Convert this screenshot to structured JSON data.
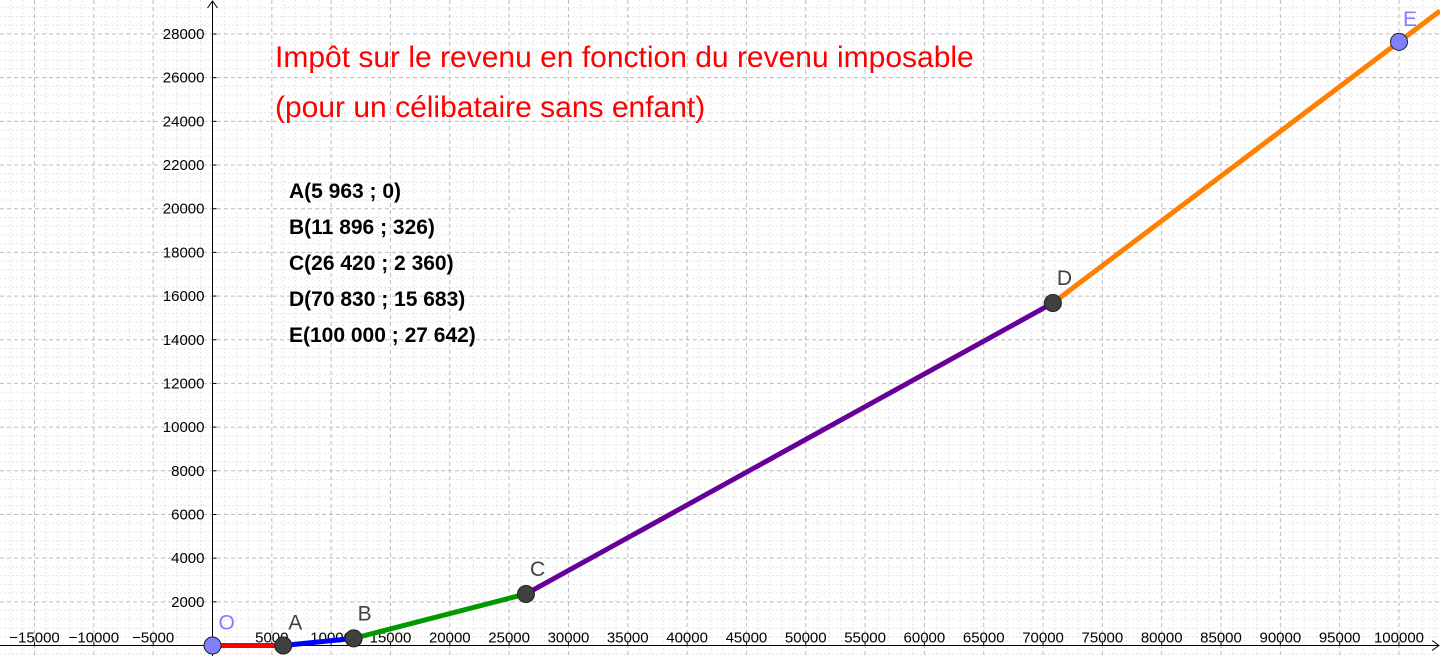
{
  "chart_data": {
    "type": "line",
    "title_lines": [
      "Impôt sur le revenu en fonction du revenu imposable",
      "(pour un célibataire sans enfant)"
    ],
    "xlabel": "",
    "ylabel": "",
    "xlim": [
      -18000,
      103000
    ],
    "ylim": [
      -400,
      29500
    ],
    "grid": true,
    "x_ticks": [
      -15000,
      -10000,
      -5000,
      5000,
      10000,
      15000,
      20000,
      25000,
      30000,
      35000,
      40000,
      45000,
      50000,
      55000,
      60000,
      65000,
      70000,
      75000,
      80000,
      85000,
      90000,
      95000,
      100000
    ],
    "y_ticks": [
      2000,
      4000,
      6000,
      8000,
      10000,
      12000,
      14000,
      16000,
      18000,
      20000,
      22000,
      24000,
      26000,
      28000
    ],
    "points": [
      {
        "name": "O",
        "x": 0,
        "y": 0,
        "color": "#7f7fff"
      },
      {
        "name": "A",
        "x": 5963,
        "y": 0,
        "color": "#404040"
      },
      {
        "name": "B",
        "x": 11896,
        "y": 326,
        "color": "#404040"
      },
      {
        "name": "C",
        "x": 26420,
        "y": 2360,
        "color": "#404040"
      },
      {
        "name": "D",
        "x": 70830,
        "y": 15683,
        "color": "#404040"
      },
      {
        "name": "E",
        "x": 100000,
        "y": 27642,
        "color": "#7f7fff"
      }
    ],
    "segments": [
      {
        "from": "O",
        "to": "A",
        "color": "#ff0000"
      },
      {
        "from": "A",
        "to": "B",
        "color": "#0000ff"
      },
      {
        "from": "B",
        "to": "C",
        "color": "#009900"
      },
      {
        "from": "C",
        "to": "D",
        "color": "#660099"
      },
      {
        "from": "D",
        "to": "E",
        "color": "#ff7f00",
        "extends_past_end": true
      }
    ],
    "coordinate_labels": [
      "A(5 963 ; 0)",
      "B(11 896 ; 326)",
      "C(26 420 ; 2 360)",
      "D(70 830 ; 15 683)",
      "E(100 000 ; 27 642)"
    ]
  }
}
